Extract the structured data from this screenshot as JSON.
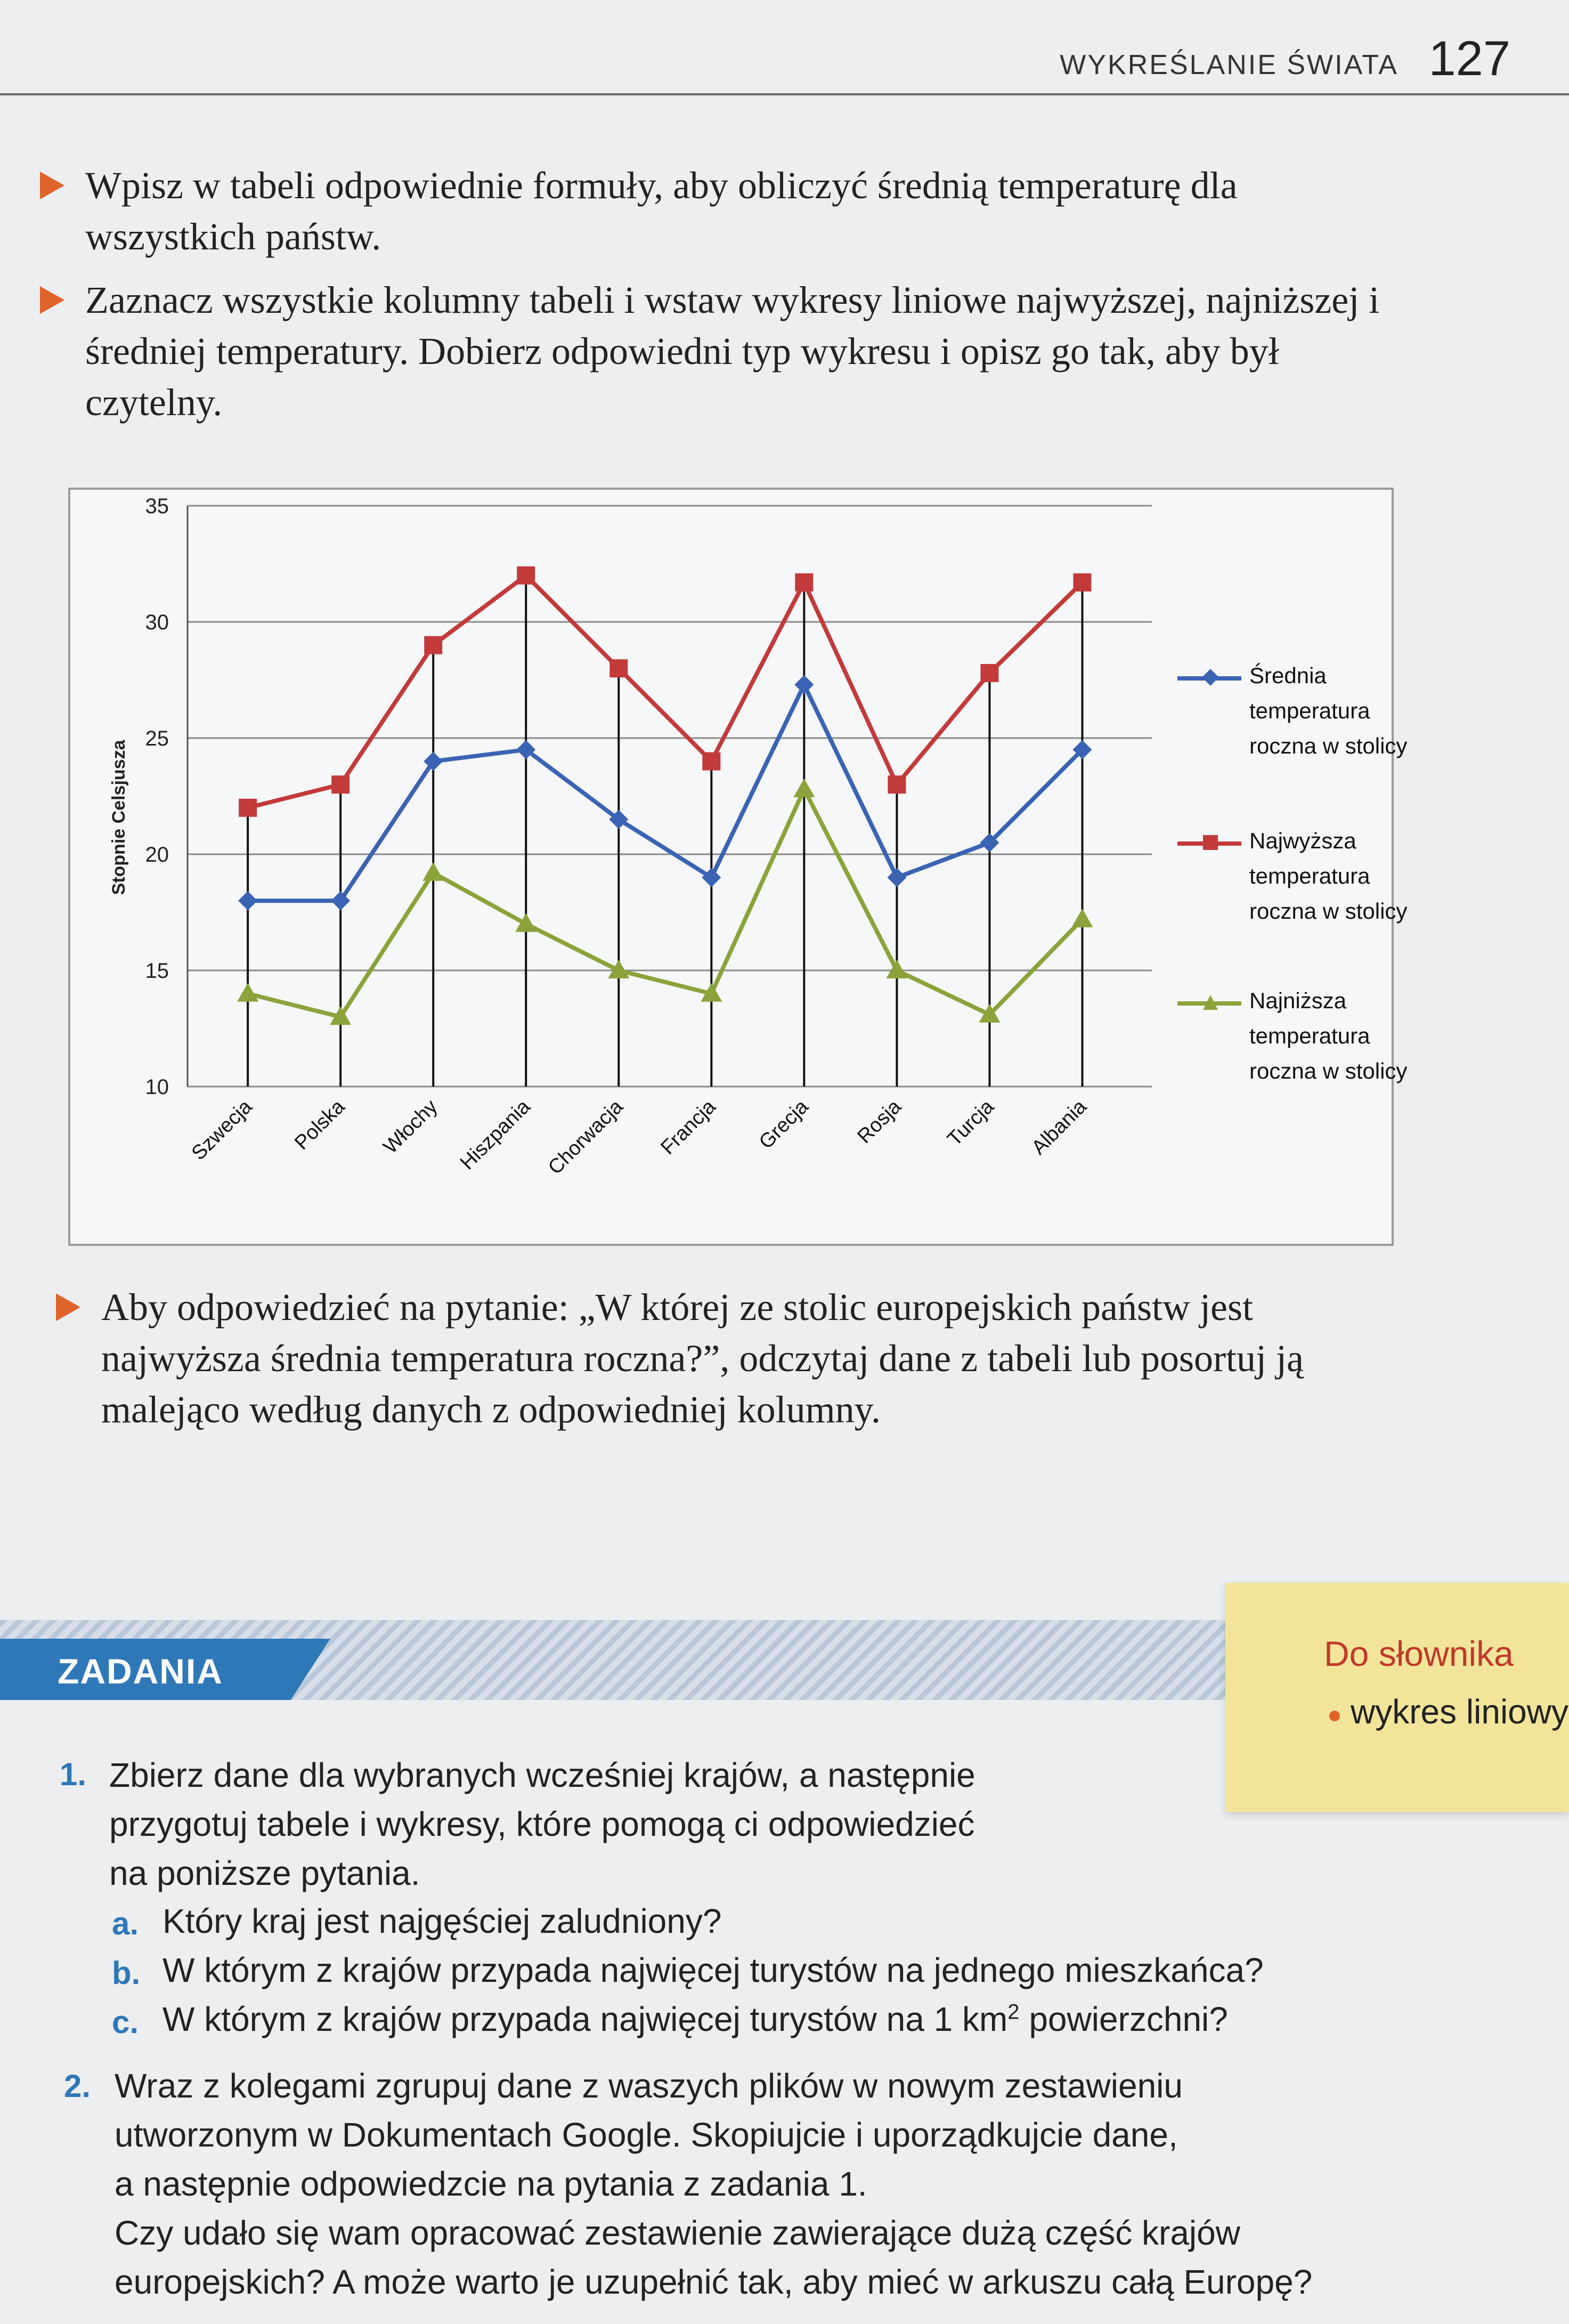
{
  "header": {
    "running_title": "WYKREŚLANIE ŚWIATA",
    "page_number": "127"
  },
  "instructions": {
    "bullet_1": "Wpisz w tabeli odpowiednie formuły, aby obliczyć średnią temperaturę dla wszystkich państw.",
    "bullet_2": "Zaznacz wszystkie kolumny tabeli i wstaw wykresy liniowe najwyższej, najniższej i średniej temperatury. Dobierz odpowiedni typ wykresu i opisz go tak, aby był czytelny.",
    "bullet_3": "Aby odpowiedzieć na pytanie: „W której ze stolic europejskich państw jest najwyższa średnia temperatura roczna?”, odczytaj dane z tabeli lub posortuj ją malejąco według danych z odpowiedniej kolumny."
  },
  "chart_data": {
    "type": "line",
    "ylabel": "Stopnie Celsjusza",
    "ylim": [
      10,
      35
    ],
    "yticks": [
      10,
      15,
      20,
      25,
      30,
      35
    ],
    "grid": true,
    "legend_position": "right",
    "categories": [
      "Szwecja",
      "Polska",
      "Włochy",
      "Hiszpania",
      "Chorwacja",
      "Francja",
      "Grecja",
      "Rosja",
      "Turcja",
      "Albania"
    ],
    "series": [
      {
        "name": "Średnia temperatura roczna w stolicy",
        "color": "#3a63b4",
        "marker": "diamond",
        "values": [
          18,
          18,
          24,
          24.5,
          21.5,
          19,
          27.3,
          19,
          20.5,
          24.5
        ]
      },
      {
        "name": "Najwyższa temperatura roczna w stolicy",
        "color": "#c33a3a",
        "marker": "square",
        "values": [
          22,
          23,
          29,
          32,
          28,
          24,
          31.7,
          23,
          27.8,
          31.7
        ]
      },
      {
        "name": "Najniższa temperatura roczna w stolicy",
        "color": "#8ba33a",
        "marker": "triangle",
        "values": [
          14,
          13,
          19.2,
          17,
          15,
          14,
          22.8,
          15,
          13.1,
          17.2
        ]
      }
    ]
  },
  "tasks": {
    "section_label": "ZADANIA",
    "task_1_num": "1.",
    "task_1_line_1": "Zbierz dane dla wybranych wcześniej krajów, a następnie",
    "task_1_line_2": "przygotuj tabele i wykresy, które pomogą ci odpowiedzieć",
    "task_1_line_3": "na poniższe pytania.",
    "sub_a_letter": "a.",
    "sub_a_text": "Który kraj jest najgęściej zaludniony?",
    "sub_b_letter": "b.",
    "sub_b_text": "W którym z krajów przypada najwięcej turystów na jednego mieszkańca?",
    "sub_c_letter": "c.",
    "sub_c_text_before": "W którym z krajów przypada najwięcej turystów na 1 km",
    "sub_c_sup": "2",
    "sub_c_text_after": " powierzchni?",
    "task_2_num": "2.",
    "task_2_line_1": "Wraz z kolegami zgrupuj dane z waszych plików w nowym zestawieniu",
    "task_2_line_2": "utworzonym w Dokumentach Google. Skopiujcie i uporządkujcie dane,",
    "task_2_line_3": "a następnie odpowiedzcie na pytania z zadania 1.",
    "task_2_line_4": "Czy udało się wam opracować zestawienie zawierające dużą część krajów",
    "task_2_line_5": "europejskich? A może warto je uzupełnić tak, aby mieć w arkuszu całą Europę?"
  },
  "glossary": {
    "title": "Do słownika",
    "item": "wykres liniowy"
  }
}
